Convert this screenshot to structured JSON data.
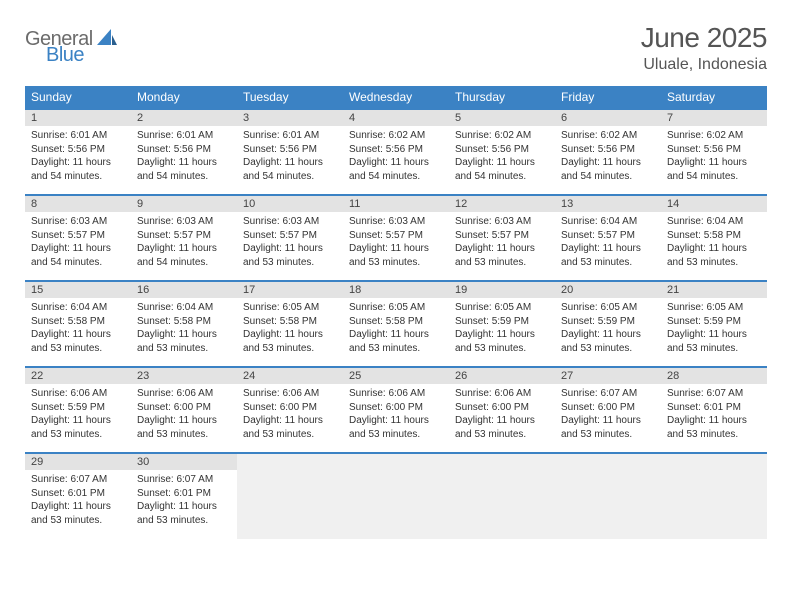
{
  "logo": {
    "text_gray": "General",
    "text_blue": "Blue"
  },
  "title": "June 2025",
  "location": "Uluale, Indonesia",
  "colors": {
    "header_bg": "#3b82c4",
    "header_text": "#ffffff",
    "daynum_bg": "#e3e3e3",
    "cell_border": "#3b82c4",
    "body_text": "#333333",
    "title_text": "#555555",
    "logo_gray": "#6b6b6b",
    "logo_blue": "#3b82c4",
    "empty_bg": "#f0f0f0"
  },
  "weekdays": [
    "Sunday",
    "Monday",
    "Tuesday",
    "Wednesday",
    "Thursday",
    "Friday",
    "Saturday"
  ],
  "weeks": [
    [
      {
        "day": "1",
        "sunrise": "6:01 AM",
        "sunset": "5:56 PM",
        "daylight": "11 hours and 54 minutes."
      },
      {
        "day": "2",
        "sunrise": "6:01 AM",
        "sunset": "5:56 PM",
        "daylight": "11 hours and 54 minutes."
      },
      {
        "day": "3",
        "sunrise": "6:01 AM",
        "sunset": "5:56 PM",
        "daylight": "11 hours and 54 minutes."
      },
      {
        "day": "4",
        "sunrise": "6:02 AM",
        "sunset": "5:56 PM",
        "daylight": "11 hours and 54 minutes."
      },
      {
        "day": "5",
        "sunrise": "6:02 AM",
        "sunset": "5:56 PM",
        "daylight": "11 hours and 54 minutes."
      },
      {
        "day": "6",
        "sunrise": "6:02 AM",
        "sunset": "5:56 PM",
        "daylight": "11 hours and 54 minutes."
      },
      {
        "day": "7",
        "sunrise": "6:02 AM",
        "sunset": "5:56 PM",
        "daylight": "11 hours and 54 minutes."
      }
    ],
    [
      {
        "day": "8",
        "sunrise": "6:03 AM",
        "sunset": "5:57 PM",
        "daylight": "11 hours and 54 minutes."
      },
      {
        "day": "9",
        "sunrise": "6:03 AM",
        "sunset": "5:57 PM",
        "daylight": "11 hours and 54 minutes."
      },
      {
        "day": "10",
        "sunrise": "6:03 AM",
        "sunset": "5:57 PM",
        "daylight": "11 hours and 53 minutes."
      },
      {
        "day": "11",
        "sunrise": "6:03 AM",
        "sunset": "5:57 PM",
        "daylight": "11 hours and 53 minutes."
      },
      {
        "day": "12",
        "sunrise": "6:03 AM",
        "sunset": "5:57 PM",
        "daylight": "11 hours and 53 minutes."
      },
      {
        "day": "13",
        "sunrise": "6:04 AM",
        "sunset": "5:57 PM",
        "daylight": "11 hours and 53 minutes."
      },
      {
        "day": "14",
        "sunrise": "6:04 AM",
        "sunset": "5:58 PM",
        "daylight": "11 hours and 53 minutes."
      }
    ],
    [
      {
        "day": "15",
        "sunrise": "6:04 AM",
        "sunset": "5:58 PM",
        "daylight": "11 hours and 53 minutes."
      },
      {
        "day": "16",
        "sunrise": "6:04 AM",
        "sunset": "5:58 PM",
        "daylight": "11 hours and 53 minutes."
      },
      {
        "day": "17",
        "sunrise": "6:05 AM",
        "sunset": "5:58 PM",
        "daylight": "11 hours and 53 minutes."
      },
      {
        "day": "18",
        "sunrise": "6:05 AM",
        "sunset": "5:58 PM",
        "daylight": "11 hours and 53 minutes."
      },
      {
        "day": "19",
        "sunrise": "6:05 AM",
        "sunset": "5:59 PM",
        "daylight": "11 hours and 53 minutes."
      },
      {
        "day": "20",
        "sunrise": "6:05 AM",
        "sunset": "5:59 PM",
        "daylight": "11 hours and 53 minutes."
      },
      {
        "day": "21",
        "sunrise": "6:05 AM",
        "sunset": "5:59 PM",
        "daylight": "11 hours and 53 minutes."
      }
    ],
    [
      {
        "day": "22",
        "sunrise": "6:06 AM",
        "sunset": "5:59 PM",
        "daylight": "11 hours and 53 minutes."
      },
      {
        "day": "23",
        "sunrise": "6:06 AM",
        "sunset": "6:00 PM",
        "daylight": "11 hours and 53 minutes."
      },
      {
        "day": "24",
        "sunrise": "6:06 AM",
        "sunset": "6:00 PM",
        "daylight": "11 hours and 53 minutes."
      },
      {
        "day": "25",
        "sunrise": "6:06 AM",
        "sunset": "6:00 PM",
        "daylight": "11 hours and 53 minutes."
      },
      {
        "day": "26",
        "sunrise": "6:06 AM",
        "sunset": "6:00 PM",
        "daylight": "11 hours and 53 minutes."
      },
      {
        "day": "27",
        "sunrise": "6:07 AM",
        "sunset": "6:00 PM",
        "daylight": "11 hours and 53 minutes."
      },
      {
        "day": "28",
        "sunrise": "6:07 AM",
        "sunset": "6:01 PM",
        "daylight": "11 hours and 53 minutes."
      }
    ],
    [
      {
        "day": "29",
        "sunrise": "6:07 AM",
        "sunset": "6:01 PM",
        "daylight": "11 hours and 53 minutes."
      },
      {
        "day": "30",
        "sunrise": "6:07 AM",
        "sunset": "6:01 PM",
        "daylight": "11 hours and 53 minutes."
      },
      null,
      null,
      null,
      null,
      null
    ]
  ],
  "labels": {
    "sunrise": "Sunrise: ",
    "sunset": "Sunset: ",
    "daylight": "Daylight: "
  }
}
